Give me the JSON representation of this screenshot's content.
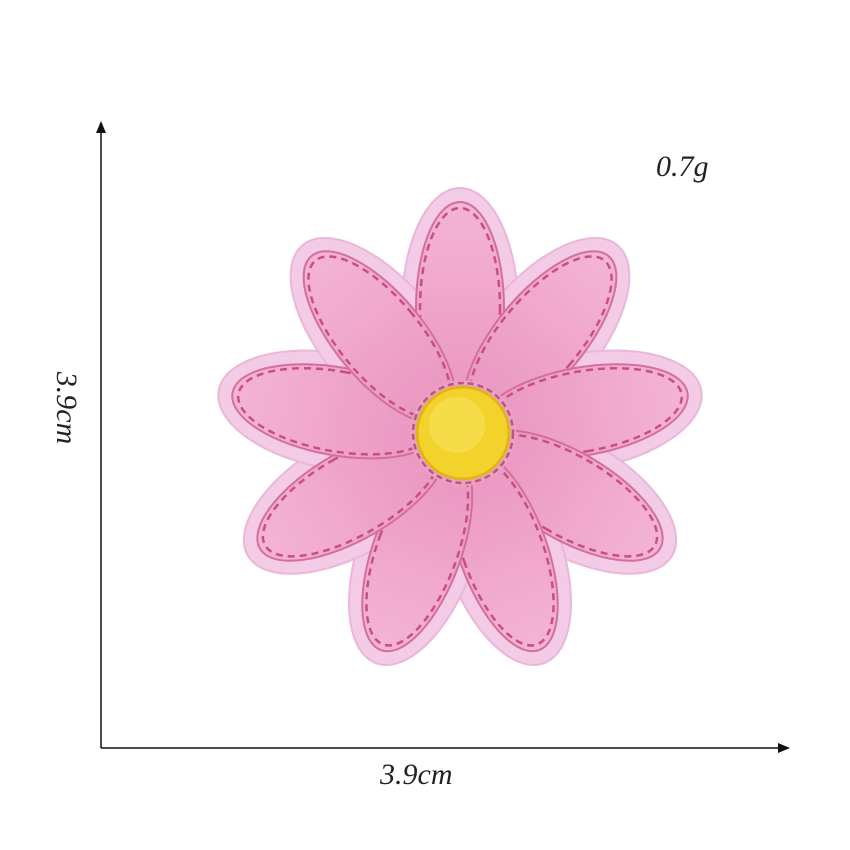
{
  "product": {
    "weight": "0.7g",
    "width": "3.9cm",
    "height": "3.9cm"
  },
  "colors": {
    "satin_border": "#f2c8e4",
    "petal_fill": "#eea6c8",
    "petal_stitch": "#cc5c8c",
    "center_fill": "#f2d228",
    "axis_line": "#111111"
  }
}
